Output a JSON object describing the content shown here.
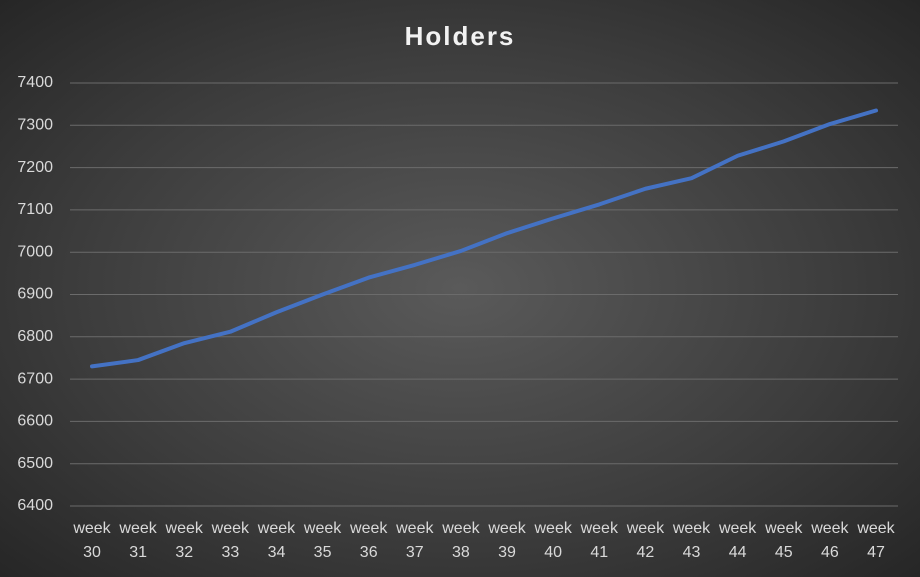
{
  "chart_data": {
    "type": "line",
    "title": "Holders",
    "categories": [
      "week 30",
      "week 31",
      "week 32",
      "week 33",
      "week 34",
      "week 35",
      "week 36",
      "week 37",
      "week 38",
      "week 39",
      "week 40",
      "week 41",
      "week 42",
      "week 43",
      "week 44",
      "week 45",
      "week 46",
      "week 47"
    ],
    "values": [
      6730,
      6745,
      6785,
      6812,
      6858,
      6900,
      6940,
      6970,
      7003,
      7045,
      7080,
      7113,
      7150,
      7175,
      7228,
      7262,
      7303,
      7335
    ],
    "color": "#4472c4",
    "ylim": [
      6400,
      7400
    ],
    "yticks": [
      6400,
      6500,
      6600,
      6700,
      6800,
      6900,
      7000,
      7100,
      7200,
      7300,
      7400
    ],
    "grid": true
  }
}
